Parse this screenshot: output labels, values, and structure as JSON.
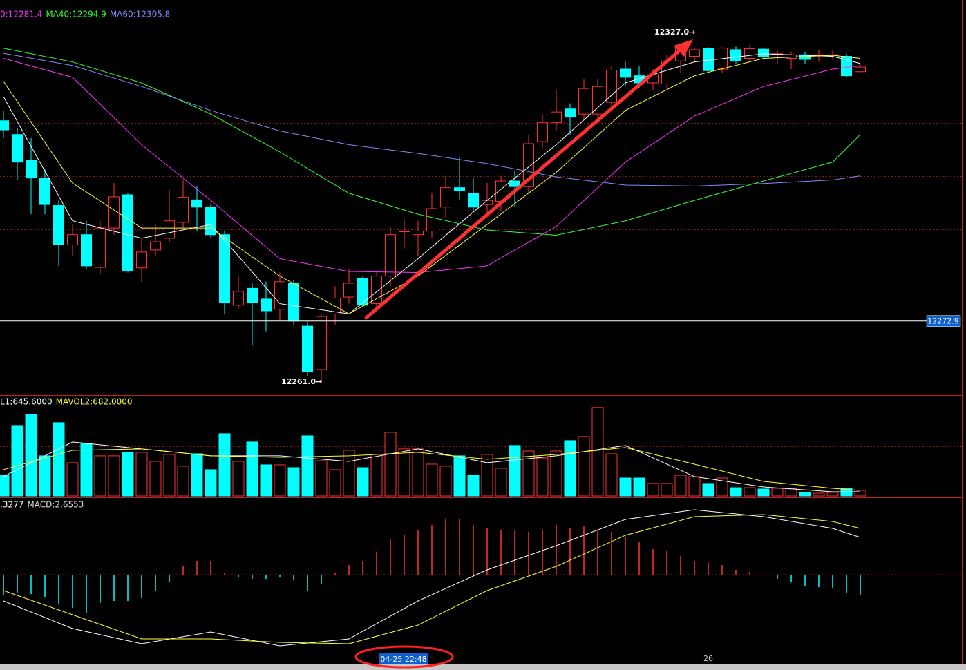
{
  "chart_data": [
    {
      "type": "candlestick",
      "legend": [
        {
          "text": "0:12281.4",
          "color": "#ff33ff"
        },
        {
          "text": "MA40:12294.9",
          "color": "#33ff33"
        },
        {
          "text": "MA60:12305.8",
          "color": "#8888ff"
        }
      ],
      "categories": [
        null,
        null,
        null,
        null,
        null,
        null,
        null,
        null,
        null,
        null,
        null,
        null,
        null,
        null,
        null,
        null,
        null,
        null,
        null,
        null,
        null,
        null,
        null,
        null,
        null,
        null,
        null,
        null,
        null,
        null,
        null,
        null,
        null,
        null,
        null,
        null,
        null,
        null,
        null,
        null,
        null,
        null,
        null,
        null,
        null,
        null,
        null,
        null,
        null,
        null,
        null,
        "26",
        null,
        null,
        null,
        null,
        null,
        null,
        null,
        null,
        null,
        null,
        null
      ],
      "open": [
        12312.1,
        12309.4,
        12304.4,
        12300.9,
        12295.5,
        12287.8,
        12289.8,
        12283.4,
        12291.1,
        12297.6,
        12283.3,
        12286.8,
        12289.1,
        12292.2,
        12296.6,
        12295.2,
        12289.8,
        12276.0,
        12279.3,
        12277.2,
        12275.2,
        12280.3,
        12271.9,
        12263.4,
        12274.3,
        12277.6,
        12281.3,
        12276.3,
        12281.7,
        12290.5,
        12289.8,
        12290.5,
        12295.2,
        12299.0,
        12297.9,
        12295.7,
        12296.3,
        12300.3,
        12299.2,
        12308.0,
        12311.7,
        12314.4,
        12313.4,
        12313.4,
        12315.7,
        12322.2,
        12320.9,
        12319.5,
        12319.3,
        12323.8,
        12324.7,
        12326.3,
        12322.2,
        12326.0,
        12324.3,
        12326.1,
        12325.2,
        12324.3,
        12325.0,
        12325.0,
        12325.0,
        12324.7,
        12321.7
      ],
      "high": [
        12314.1,
        12310.7,
        12308.7,
        12302.6,
        12296.5,
        12291.8,
        12292.5,
        12292.5,
        12299.9,
        12297.9,
        12289.1,
        12291.8,
        12298.6,
        12300.6,
        12299.2,
        12295.9,
        12290.5,
        12281.7,
        12280.3,
        12280.6,
        12282.4,
        12281.0,
        12272.9,
        12274.3,
        12279.7,
        12283.0,
        12281.7,
        12282.4,
        12291.4,
        12292.8,
        12292.5,
        12297.9,
        12301.3,
        12304.9,
        12300.9,
        12299.9,
        12301.3,
        12302.2,
        12309.4,
        12313.4,
        12318.2,
        12315.5,
        12320.2,
        12320.2,
        12322.9,
        12323.8,
        12322.9,
        12322.2,
        12324.9,
        12326.8,
        12326.4,
        12326.5,
        12326.5,
        12326.6,
        12327.0,
        12326.4,
        12326.0,
        12325.6,
        12325.6,
        12326.0,
        12326.0,
        12325.2,
        12323.3
      ],
      "low": [
        12308.7,
        12300.6,
        12293.8,
        12293.8,
        12283.7,
        12285.7,
        12283.0,
        12282.0,
        12289.8,
        12282.4,
        12280.6,
        12285.7,
        12288.4,
        12291.1,
        12290.5,
        12289.1,
        12274.3,
        12275.2,
        12268.2,
        12270.9,
        12272.9,
        12272.2,
        12262.1,
        12261.0,
        12272.2,
        12276.3,
        12275.6,
        12275.6,
        12279.7,
        12287.1,
        12285.7,
        12289.1,
        12293.2,
        12296.6,
        12294.5,
        12293.2,
        12294.5,
        12295.2,
        12297.9,
        12306.7,
        12310.1,
        12309.4,
        12312.5,
        12312.1,
        12314.1,
        12318.8,
        12318.4,
        12318.2,
        12318.4,
        12321.5,
        12323.6,
        12321.5,
        12321.5,
        12323.3,
        12323.8,
        12324.3,
        12323.3,
        12322.2,
        12323.3,
        12323.6,
        12324.1,
        12320.6,
        12321.4
      ],
      "close": [
        12310.3,
        12304.0,
        12300.9,
        12295.7,
        12287.8,
        12289.8,
        12283.7,
        12291.1,
        12297.2,
        12282.8,
        12286.4,
        12288.4,
        12292.5,
        12297.1,
        12295.2,
        12289.8,
        12276.5,
        12278.7,
        12276.5,
        12274.9,
        12280.6,
        12272.9,
        12263.0,
        12273.8,
        12277.4,
        12280.3,
        12276.0,
        12281.7,
        12289.8,
        12290.5,
        12290.5,
        12294.9,
        12299.0,
        12298.4,
        12295.2,
        12296.5,
        12300.3,
        12299.2,
        12307.6,
        12311.7,
        12313.8,
        12312.8,
        12318.4,
        12318.8,
        12322.0,
        12320.6,
        12319.5,
        12321.1,
        12323.8,
        12326.5,
        12326.0,
        12321.9,
        12326.3,
        12323.8,
        12326.2,
        12324.6,
        12325.2,
        12325.0,
        12324.1,
        12325.0,
        12325.0,
        12320.9,
        12322.6
      ],
      "up_color": "#ff3232",
      "down_color": "#00ffff",
      "ylim": [
        12258.4,
        12334.1
      ],
      "overlays": [
        {
          "color": "#ffffff",
          "x": [
            0,
            5,
            10,
            15,
            20,
            25,
            30,
            35,
            40,
            45,
            50,
            55,
            60,
            62
          ],
          "values": [
            12316.8,
            12292.5,
            12289.1,
            12291.8,
            12276.3,
            12274.3,
            12285.1,
            12296.5,
            12307.4,
            12319.5,
            12323.6,
            12325.2,
            12324.7,
            12323.3
          ]
        },
        {
          "color": "#ffff33",
          "x": [
            0,
            5,
            10,
            15,
            20,
            25,
            30,
            35,
            40,
            45,
            50,
            55,
            60,
            62
          ],
          "values": [
            12319.8,
            12299.9,
            12291.1,
            12291.1,
            12281.7,
            12274.3,
            12281.7,
            12291.8,
            12302.0,
            12314.1,
            12320.9,
            12324.3,
            12324.9,
            12324.3
          ]
        },
        {
          "color": "#ff33ff",
          "x": [
            0,
            5,
            10,
            15,
            20,
            25,
            30,
            35,
            40,
            45,
            50,
            55,
            60,
            62
          ],
          "values": [
            12324.3,
            12320.6,
            12307.4,
            12296.5,
            12285.1,
            12282.6,
            12282.4,
            12283.7,
            12291.4,
            12304.0,
            12313.0,
            12318.8,
            12322.2,
            12322.9
          ]
        },
        {
          "color": "#33ff33",
          "x": [
            0,
            5,
            10,
            15,
            20,
            25,
            30,
            35,
            40,
            45,
            50,
            55,
            60,
            62
          ],
          "values": [
            12326.3,
            12323.6,
            12319.5,
            12313.4,
            12306.0,
            12297.9,
            12293.8,
            12290.7,
            12289.7,
            12292.5,
            12296.5,
            12300.3,
            12304.0,
            12309.4
          ]
        },
        {
          "color": "#8888ff",
          "x": [
            0,
            5,
            10,
            15,
            20,
            25,
            30,
            35,
            40,
            45,
            50,
            55,
            60,
            62
          ],
          "values": [
            12325.3,
            12322.9,
            12318.8,
            12314.1,
            12310.1,
            12307.4,
            12305.7,
            12303.7,
            12301.1,
            12299.5,
            12299.3,
            12299.8,
            12300.5,
            12301.3
          ]
        }
      ],
      "annotations": [
        "12327.0→",
        "12261.0→"
      ],
      "cursor_price": 12272.9,
      "cursor_label": "04-25 22:48"
    },
    {
      "type": "bar",
      "legend": [
        {
          "text": "L1:645.6000",
          "color": "#ffffff"
        },
        {
          "text": "MAVOL2:682.0000",
          "color": "#ffff33"
        }
      ],
      "values": [
        336,
        1131,
        1322,
        650,
        1187,
        538,
        851,
        650,
        650,
        706,
        706,
        560,
        672,
        482,
        683,
        426,
        1008,
        560,
        874,
        504,
        504,
        459,
        974,
        571,
        426,
        739,
        459,
        672,
        1030,
        762,
        762,
        515,
        482,
        650,
        336,
        672,
        448,
        818,
        728,
        616,
        728,
        896,
        963,
        1434,
        683,
        291,
        291,
        202,
        202,
        336,
        314,
        202,
        291,
        134,
        134,
        112,
        123,
        123,
        56,
        45,
        56,
        123,
        90
      ],
      "ylim": [
        0,
        1600
      ],
      "overlays": [
        {
          "color": "#ffffff",
          "x": [
            0,
            5,
            10,
            15,
            20,
            25,
            30,
            35,
            40,
            45,
            50,
            55,
            60,
            62
          ],
          "values": [
            314,
            874,
            762,
            650,
            650,
            560,
            762,
            538,
            650,
            818,
            314,
            146,
            67,
            67
          ]
        },
        {
          "color": "#ffff33",
          "x": [
            0,
            5,
            10,
            15,
            20,
            25,
            30,
            35,
            40,
            45,
            50,
            55,
            60,
            62
          ],
          "values": [
            426,
            739,
            762,
            650,
            627,
            650,
            706,
            594,
            672,
            784,
            515,
            235,
            123,
            90
          ]
        }
      ]
    },
    {
      "type": "macd",
      "legend": [
        {
          "text": ".3277",
          "color": "#ffffff"
        },
        {
          "text": "MACD:2.6553",
          "color": "#dddddd"
        }
      ],
      "values": [
        -2.4,
        -2.08,
        -2.24,
        -2.64,
        -3.44,
        -3.84,
        -4.48,
        -3.28,
        -3.04,
        -3.04,
        -2.72,
        -1.92,
        -0.88,
        0.96,
        1.6,
        1.6,
        0.16,
        -0.32,
        -0.48,
        -0.48,
        -0.32,
        -0.64,
        -1.84,
        -1.04,
        0.16,
        1.12,
        1.6,
        2.66,
        4.16,
        4.56,
        5.12,
        5.76,
        6.4,
        6.4,
        5.76,
        5.36,
        5.12,
        5.12,
        4.96,
        5.12,
        5.76,
        5.36,
        5.6,
        5.12,
        4.96,
        4.32,
        3.76,
        2.96,
        2.72,
        2.16,
        1.6,
        1.36,
        1.12,
        0.56,
        0.32,
        -0.08,
        -0.48,
        -0.8,
        -1.28,
        -1.44,
        -1.6,
        -2.08,
        -2.4
      ],
      "ylim": [
        -9.04,
        8.8
      ],
      "overlays": [
        {
          "color": "#ffffff",
          "x": [
            0,
            5,
            10,
            15,
            20,
            25,
            30,
            35,
            40,
            45,
            50,
            55,
            60,
            62
          ],
          "values": [
            -3.04,
            -6.24,
            -8.0,
            -6.64,
            -8.24,
            -7.44,
            -3.04,
            0.56,
            3.36,
            6.4,
            7.52,
            6.72,
            5.36,
            4.32
          ]
        },
        {
          "color": "#ffff33",
          "x": [
            0,
            5,
            10,
            15,
            20,
            25,
            30,
            35,
            40,
            45,
            50,
            55,
            60,
            62
          ],
          "values": [
            -1.84,
            -4.64,
            -7.44,
            -7.44,
            -7.84,
            -8.0,
            -5.84,
            -1.84,
            0.96,
            4.56,
            6.72,
            6.96,
            6.16,
            5.36
          ]
        }
      ]
    }
  ]
}
